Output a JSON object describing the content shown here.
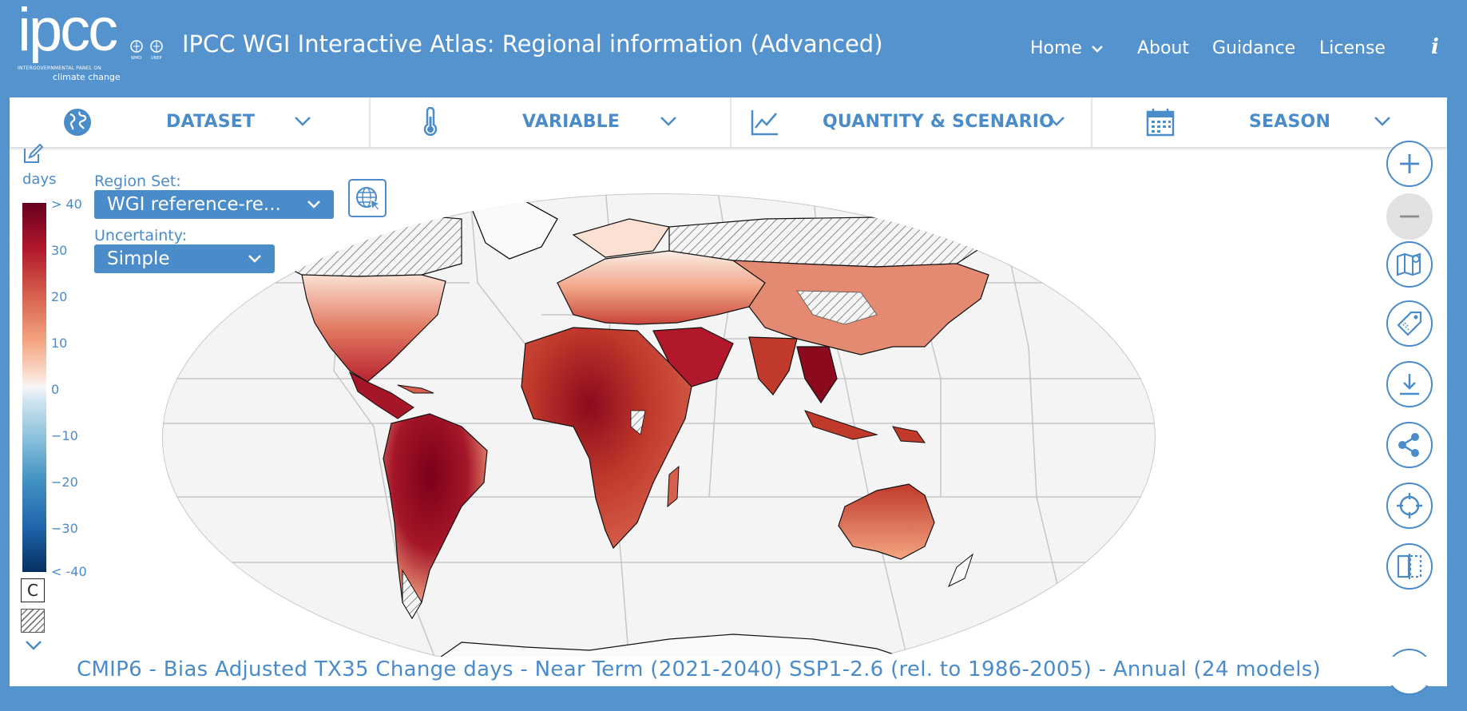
{
  "header": {
    "logo_text": "ipcc",
    "logo_tagline": "INTERGOVERNMENTAL PANEL ON",
    "logo_tagline2": "climate change",
    "org_logos": [
      "WMO",
      "UNEP"
    ],
    "title": "IPCC WGI Interactive Atlas: Regional information (Advanced)",
    "nav": [
      {
        "label": "Home",
        "has_dropdown": true
      },
      {
        "label": "About"
      },
      {
        "label": "Guidance"
      },
      {
        "label": "License"
      }
    ],
    "info_icon": "i"
  },
  "toolbar": [
    {
      "label": "DATASET",
      "icon": "globe-icon"
    },
    {
      "label": "VARIABLE",
      "icon": "thermometer-icon"
    },
    {
      "label": "QUANTITY & SCENARIO",
      "icon": "line-chart-icon"
    },
    {
      "label": "SEASON",
      "icon": "calendar-icon"
    }
  ],
  "legend": {
    "unit": "days",
    "ticks": [
      "> 40",
      "30",
      "20",
      "10",
      "0",
      "−10",
      "−20",
      "−30",
      "< -40"
    ],
    "confidence_symbol": "C",
    "colors": [
      "#67001f",
      "#b2182b",
      "#d6604d",
      "#f4a582",
      "#f7f7f7",
      "#92c5de",
      "#4393c3",
      "#2166ac",
      "#053061"
    ]
  },
  "controls": {
    "region_set_label": "Region Set:",
    "region_set_value": "WGI reference-re...",
    "uncertainty_label": "Uncertainty:",
    "uncertainty_value": "Simple"
  },
  "caption": "CMIP6 - Bias Adjusted TX35 Change days - Near Term (2021-2040) SSP1-2.6 (rel. to 1986-2005) - Annual (24 models)",
  "map_tools": [
    "zoom-in-icon",
    "zoom-out-icon",
    "map-icon",
    "tag-icon",
    "download-icon",
    "share-icon",
    "locate-icon",
    "compare-icon",
    "fullscreen-icon"
  ],
  "accent_color": "#4a8bc9",
  "header_color": "#5593cf"
}
